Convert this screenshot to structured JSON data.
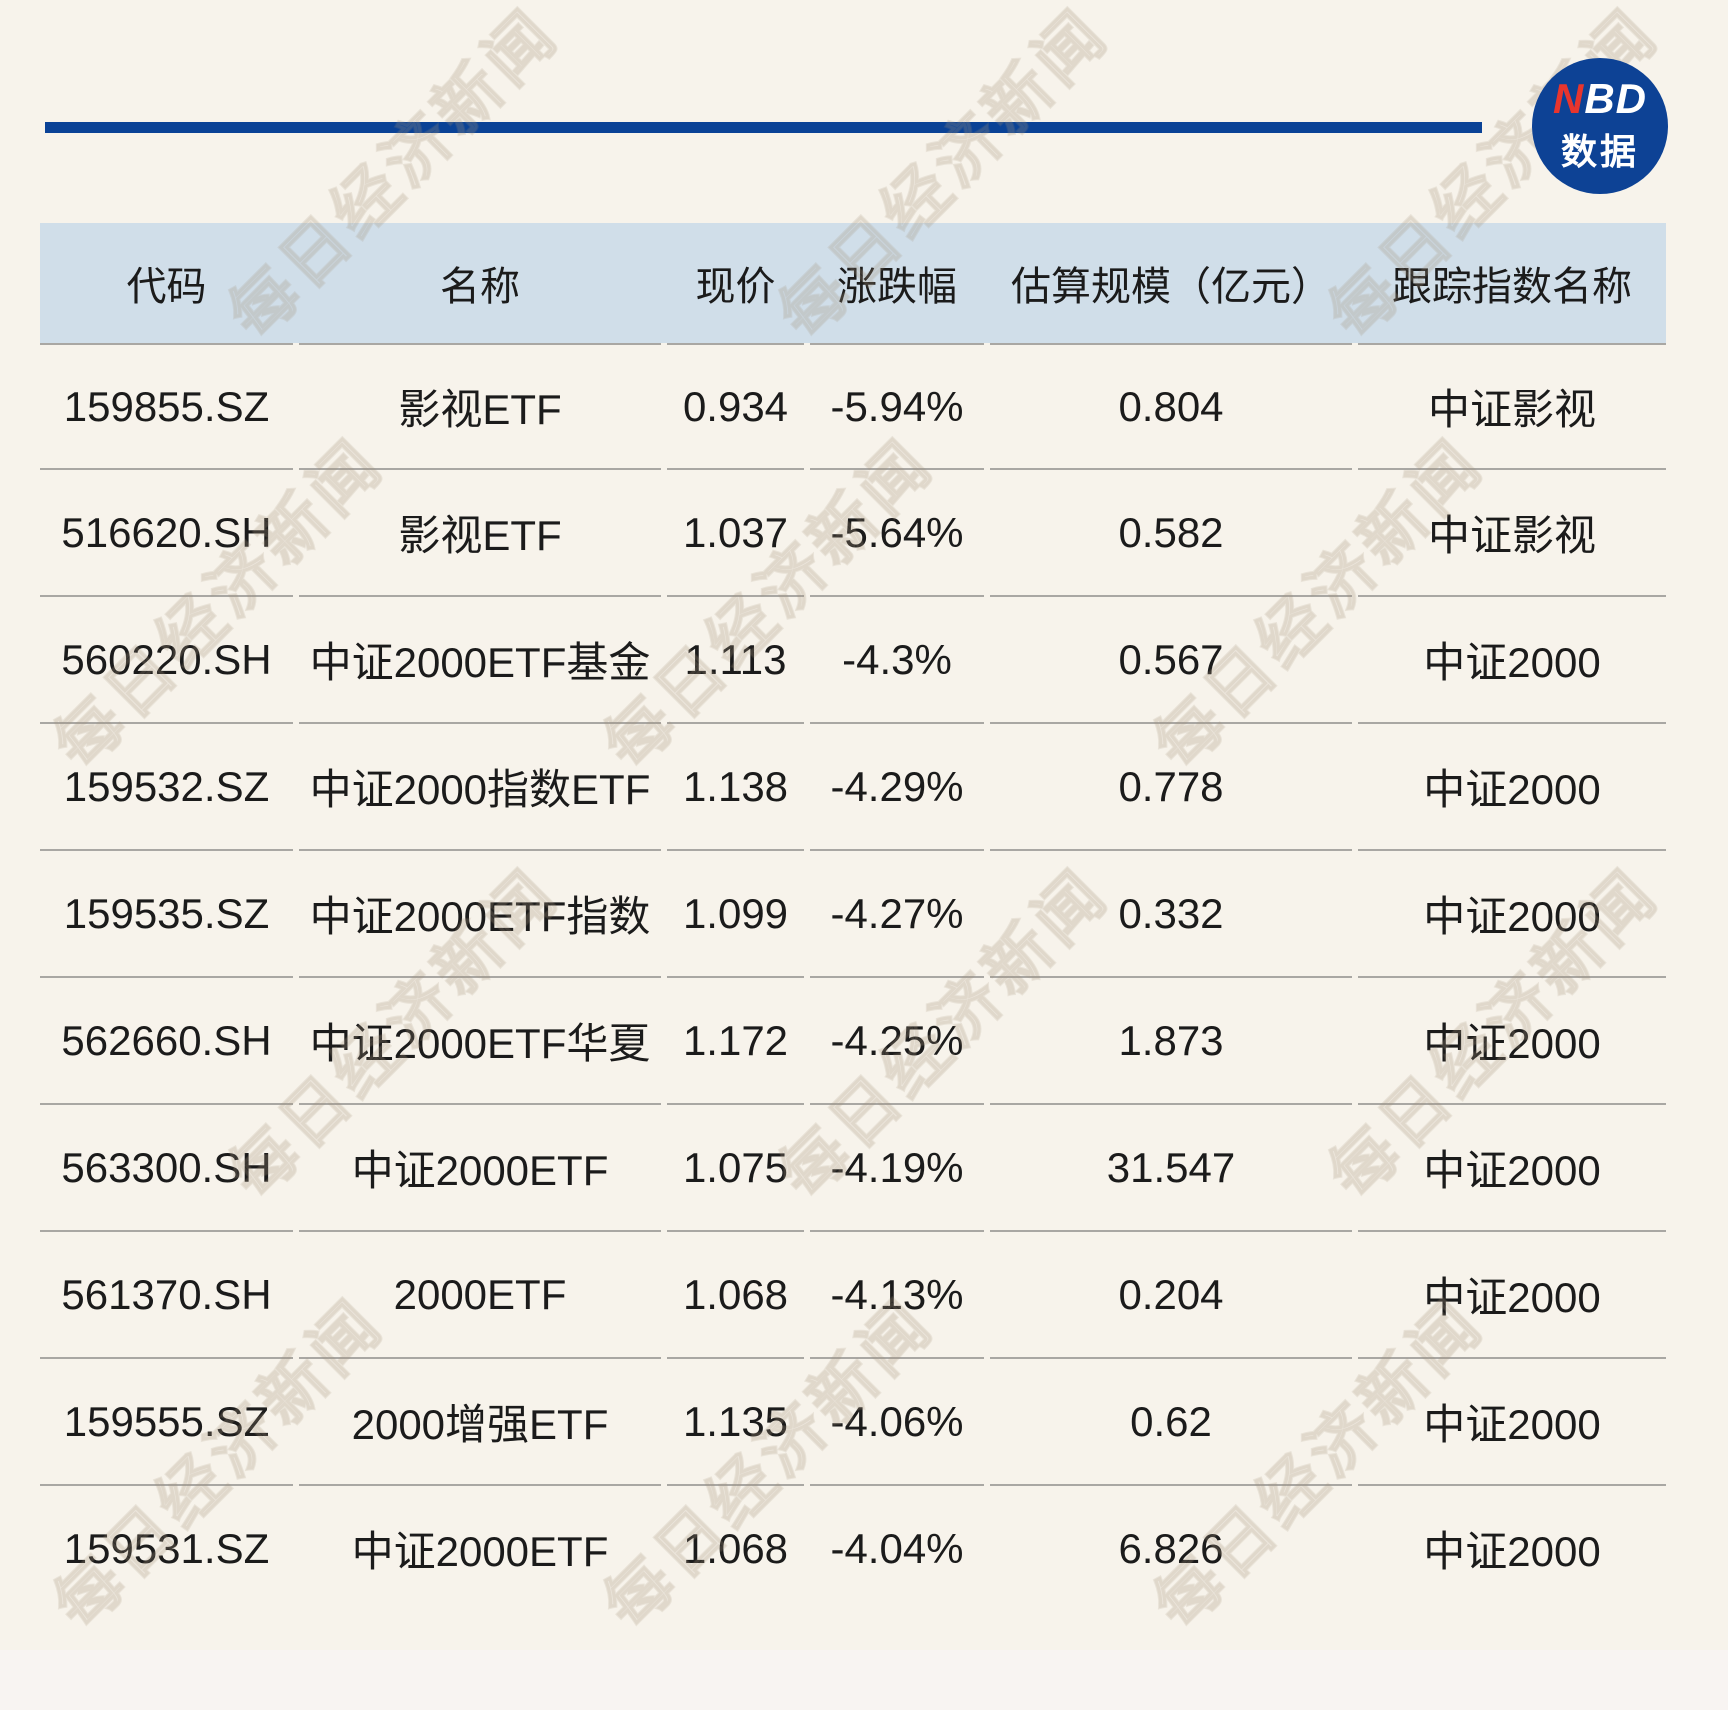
{
  "logo": {
    "nbd_n": "N",
    "nbd_bd": "BD",
    "caption": "数据",
    "circle_color": "#0d4295",
    "n_color": "#e8352d"
  },
  "watermark": {
    "text": "每日经济新闻"
  },
  "colors": {
    "page_bg": "#f7f3eb",
    "footer_bg": "#f8f4f2",
    "header_bg": "#d0dee9",
    "top_line": "#0a4296",
    "row_divider": "#a9a7a3",
    "text": "#1b1b1b"
  },
  "chart_data": {
    "type": "table",
    "columns": [
      "代码",
      "名称",
      "现价",
      "涨跌幅",
      "估算规模（亿元）",
      "跟踪指数名称"
    ],
    "rows": [
      [
        "159855.SZ",
        "影视ETF",
        "0.934",
        "-5.94%",
        "0.804",
        "中证影视"
      ],
      [
        "516620.SH",
        "影视ETF",
        "1.037",
        "-5.64%",
        "0.582",
        "中证影视"
      ],
      [
        "560220.SH",
        "中证2000ETF基金",
        "1.113",
        "-4.3%",
        "0.567",
        "中证2000"
      ],
      [
        "159532.SZ",
        "中证2000指数ETF",
        "1.138",
        "-4.29%",
        "0.778",
        "中证2000"
      ],
      [
        "159535.SZ",
        "中证2000ETF指数",
        "1.099",
        "-4.27%",
        "0.332",
        "中证2000"
      ],
      [
        "562660.SH",
        "中证2000ETF华夏",
        "1.172",
        "-4.25%",
        "1.873",
        "中证2000"
      ],
      [
        "563300.SH",
        "中证2000ETF",
        "1.075",
        "-4.19%",
        "31.547",
        "中证2000"
      ],
      [
        "561370.SH",
        "2000ETF",
        "1.068",
        "-4.13%",
        "0.204",
        "中证2000"
      ],
      [
        "159555.SZ",
        "2000增强ETF",
        "1.135",
        "-4.06%",
        "0.62",
        "中证2000"
      ],
      [
        "159531.SZ",
        "中证2000ETF",
        "1.068",
        "-4.04%",
        "6.826",
        "中证2000"
      ]
    ]
  }
}
